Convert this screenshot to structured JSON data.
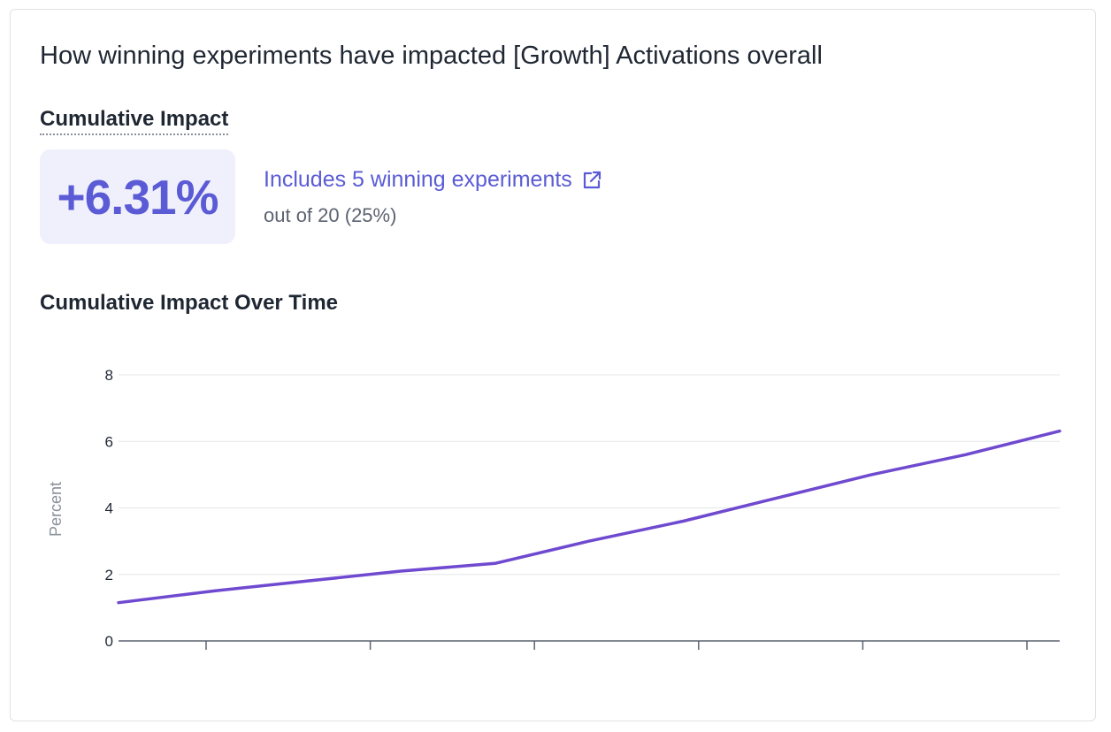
{
  "card": {
    "title": "How winning experiments have impacted [Growth] Activations overall",
    "cumulative_label": "Cumulative Impact",
    "impact_value": "+6.31%",
    "includes_link": "Includes 5 winning experiments",
    "out_of_text": "out of 20 (25%)",
    "chart_title": "Cumulative Impact Over Time"
  },
  "colors": {
    "accent": "#5b5bd6",
    "line": "#6f4ad0",
    "impact_bg": "#f0f0fd"
  },
  "icons": {
    "external_link": "external-link-icon"
  },
  "chart_data": {
    "type": "line",
    "title": "Cumulative Impact Over Time",
    "xlabel": "",
    "ylabel": "Percent",
    "ylim": [
      0,
      8
    ],
    "yticks": [
      0,
      2,
      4,
      6,
      8
    ],
    "x_tick_count": 6,
    "grid": true,
    "series": [
      {
        "values": [
          1.15,
          1.5,
          1.8,
          2.1,
          2.33,
          3.0,
          3.6,
          4.3,
          5.0,
          5.6,
          6.31
        ]
      }
    ]
  }
}
